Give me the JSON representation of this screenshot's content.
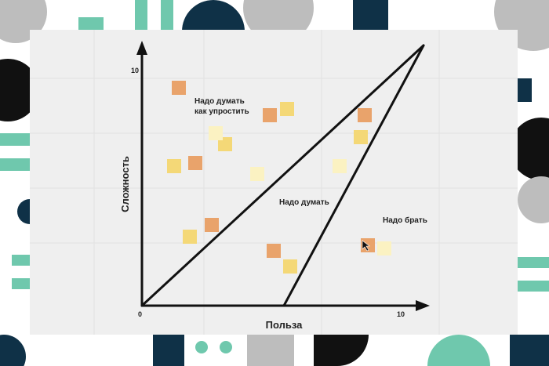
{
  "axes": {
    "y_max_label": "10",
    "origin_label": "0",
    "x_max_label": "10",
    "y_title": "Сложность",
    "x_title": "Польза"
  },
  "zones": [
    {
      "label_lines": [
        "Надо думать",
        "как упростить"
      ]
    },
    {
      "label": "Надо думать"
    },
    {
      "label": "Надо брать"
    }
  ]
}
